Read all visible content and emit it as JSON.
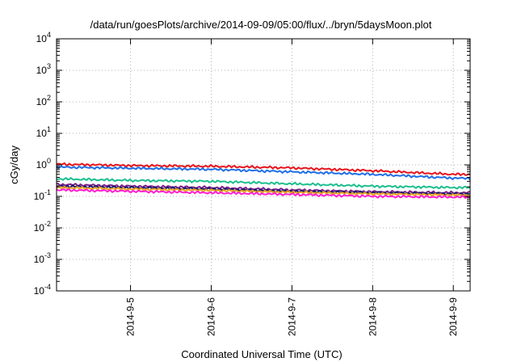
{
  "chart_data": {
    "type": "line",
    "title": "/data/run/goesPlots/archive/2014-09-09/05:00/flux/../bryn/5daysMoon.plot",
    "xlabel": "Coordinated Universal Time (UTC)",
    "ylabel": "cGy/day",
    "yscale": "log",
    "ylim_exponent": [
      -4,
      4
    ],
    "y_tick_labels": [
      {
        "base": "10",
        "exp": "-4"
      },
      {
        "base": "10",
        "exp": "-3"
      },
      {
        "base": "10",
        "exp": "-2"
      },
      {
        "base": "10",
        "exp": "-1"
      },
      {
        "base": "10",
        "exp": "0"
      },
      {
        "base": "10",
        "exp": "1"
      },
      {
        "base": "10",
        "exp": "2"
      },
      {
        "base": "10",
        "exp": "3"
      },
      {
        "base": "10",
        "exp": "4"
      }
    ],
    "xlim": [
      "2014-09-04 02:00",
      "2014-09-09 05:00"
    ],
    "x_tick_labels": [
      "2014-9-5",
      "2014-9-6",
      "2014-9-7",
      "2014-9-8",
      "2014-9-9"
    ],
    "grid": true,
    "series": [
      {
        "color": "#e8141c",
        "x": [
          "2014-09-04 02:00",
          "2014-09-05 00:00",
          "2014-09-06 00:00",
          "2014-09-07 00:00",
          "2014-09-08 00:00",
          "2014-09-09 00:00",
          "2014-09-09 05:00"
        ],
        "values": [
          1.05,
          0.95,
          0.9,
          0.8,
          0.65,
          0.5,
          0.5
        ]
      },
      {
        "color": "#1f6fe8",
        "x": [
          "2014-09-04 02:00",
          "2014-09-05 00:00",
          "2014-09-06 00:00",
          "2014-09-07 00:00",
          "2014-09-08 00:00",
          "2014-09-09 00:00",
          "2014-09-09 05:00"
        ],
        "values": [
          0.85,
          0.78,
          0.72,
          0.6,
          0.5,
          0.38,
          0.37
        ]
      },
      {
        "color": "#1dbf8e",
        "x": [
          "2014-09-04 02:00",
          "2014-09-05 00:00",
          "2014-09-06 00:00",
          "2014-09-07 00:00",
          "2014-09-08 00:00",
          "2014-09-09 00:00",
          "2014-09-09 05:00"
        ],
        "values": [
          0.36,
          0.32,
          0.3,
          0.25,
          0.21,
          0.19,
          0.19
        ]
      },
      {
        "color": "#7a1f8c",
        "x": [
          "2014-09-04 02:00",
          "2014-09-05 00:00",
          "2014-09-06 00:00",
          "2014-09-07 00:00",
          "2014-09-08 00:00",
          "2014-09-09 00:00",
          "2014-09-09 05:00"
        ],
        "values": [
          0.24,
          0.21,
          0.19,
          0.16,
          0.14,
          0.13,
          0.13
        ]
      },
      {
        "color": "#1a1a6e",
        "x": [
          "2014-09-04 02:00",
          "2014-09-05 00:00",
          "2014-09-06 00:00",
          "2014-09-07 00:00",
          "2014-09-08 00:00",
          "2014-09-09 00:00",
          "2014-09-09 05:00"
        ],
        "values": [
          0.21,
          0.19,
          0.17,
          0.145,
          0.13,
          0.12,
          0.12
        ]
      },
      {
        "color": "#e8a21f",
        "x": [
          "2014-09-04 02:00",
          "2014-09-05 00:00",
          "2014-09-06 00:00",
          "2014-09-07 00:00",
          "2014-09-08 00:00",
          "2014-09-09 00:00",
          "2014-09-09 05:00"
        ],
        "values": [
          0.19,
          0.17,
          0.155,
          0.135,
          0.12,
          0.11,
          0.11
        ]
      },
      {
        "color": "#ff1fd0",
        "x": [
          "2014-09-04 02:00",
          "2014-09-05 00:00",
          "2014-09-06 00:00",
          "2014-09-07 00:00",
          "2014-09-08 00:00",
          "2014-09-09 00:00",
          "2014-09-09 05:00"
        ],
        "values": [
          0.16,
          0.145,
          0.13,
          0.115,
          0.1,
          0.095,
          0.095
        ]
      }
    ]
  }
}
